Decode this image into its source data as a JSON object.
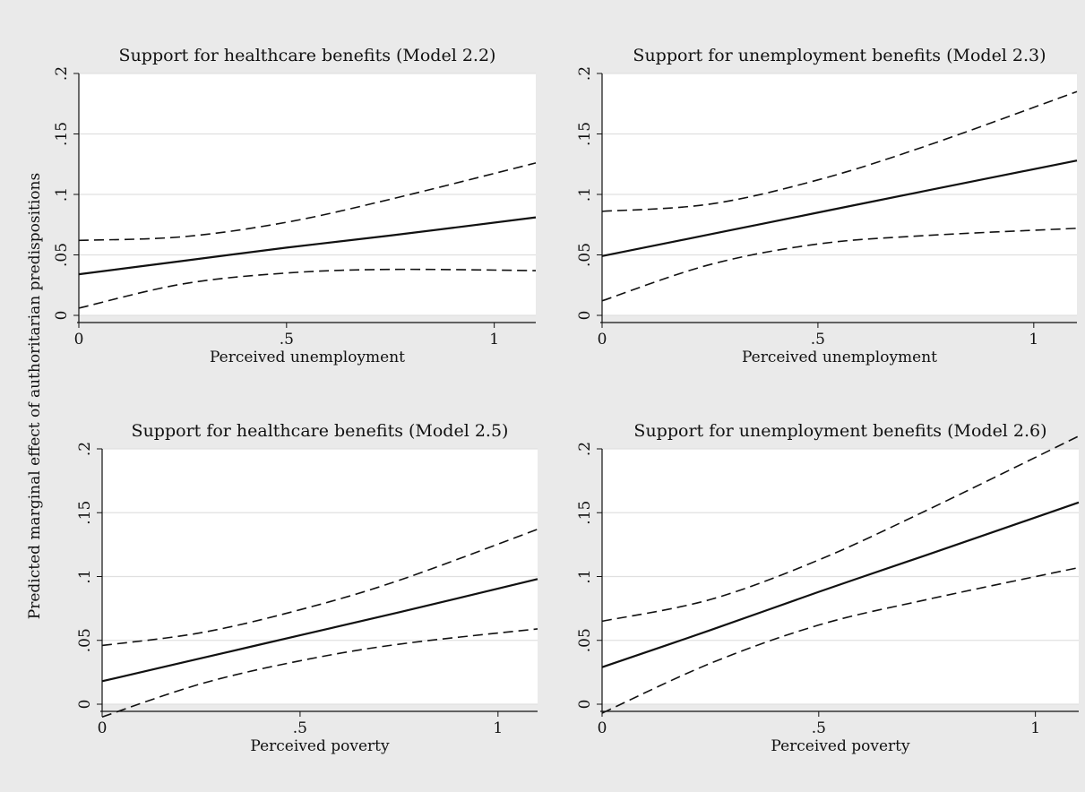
{
  "figure": {
    "ylabel": "Predicted marginal effect of authoritarian predispositions",
    "background": "#eaeaea",
    "plot_background": "#ffffff",
    "grid_color": "#e0e0e0",
    "line_color": "#111111"
  },
  "chart_data": [
    {
      "type": "line",
      "title": "Support for healthcare benefits (Model 2.2)",
      "xlabel": "Perceived unemployment",
      "ylabel": "",
      "xlim": [
        0,
        1.1
      ],
      "ylim": [
        0,
        0.2
      ],
      "xticks": [
        0,
        0.5,
        1
      ],
      "xtick_labels": [
        "0",
        ".5",
        "1"
      ],
      "yticks": [
        0,
        0.05,
        0.1,
        0.15,
        0.2
      ],
      "ytick_labels": [
        "0",
        ".05",
        ".1",
        ".15",
        ".2"
      ],
      "grid": true,
      "x": [
        0,
        0.25,
        0.5,
        0.75,
        1.1
      ],
      "series": [
        {
          "style": "solid",
          "values": [
            0.034,
            0.045,
            0.056,
            0.066,
            0.081
          ]
        },
        {
          "style": "dashed",
          "values": [
            0.062,
            0.065,
            0.077,
            0.096,
            0.126
          ]
        },
        {
          "style": "dashed",
          "values": [
            0.006,
            0.026,
            0.035,
            0.038,
            0.037
          ]
        }
      ]
    },
    {
      "type": "line",
      "title": "Support for unemployment benefits (Model 2.3)",
      "xlabel": "Perceived unemployment",
      "ylabel": "",
      "xlim": [
        0,
        1.1
      ],
      "ylim": [
        0,
        0.2
      ],
      "xticks": [
        0,
        0.5,
        1
      ],
      "xtick_labels": [
        "0",
        ".5",
        "1"
      ],
      "yticks": [
        0,
        0.05,
        0.1,
        0.15,
        0.2
      ],
      "ytick_labels": [
        "0",
        ".05",
        ".1",
        ".15",
        ".2"
      ],
      "grid": true,
      "x": [
        0,
        0.25,
        0.5,
        0.75,
        1.1
      ],
      "series": [
        {
          "style": "solid",
          "values": [
            0.049,
            0.067,
            0.085,
            0.103,
            0.128
          ]
        },
        {
          "style": "dashed",
          "values": [
            0.086,
            0.092,
            0.112,
            0.14,
            0.185
          ]
        },
        {
          "style": "dashed",
          "values": [
            0.012,
            0.042,
            0.059,
            0.066,
            0.072
          ]
        }
      ]
    },
    {
      "type": "line",
      "title": "Support for healthcare benefits (Model 2.5)",
      "xlabel": "Perceived poverty",
      "ylabel": "",
      "xlim": [
        0,
        1.1
      ],
      "ylim": [
        0,
        0.2
      ],
      "xticks": [
        0,
        0.5,
        1
      ],
      "xtick_labels": [
        "0",
        ".5",
        "1"
      ],
      "yticks": [
        0,
        0.05,
        0.1,
        0.15,
        0.2
      ],
      "ytick_labels": [
        "0",
        ".05",
        ".1",
        ".15",
        ".2"
      ],
      "grid": true,
      "x": [
        0,
        0.25,
        0.5,
        0.75,
        1.1
      ],
      "series": [
        {
          "style": "solid",
          "values": [
            0.018,
            0.036,
            0.054,
            0.072,
            0.098
          ]
        },
        {
          "style": "dashed",
          "values": [
            0.046,
            0.056,
            0.074,
            0.097,
            0.137
          ]
        },
        {
          "style": "dashed",
          "values": [
            -0.01,
            0.016,
            0.034,
            0.047,
            0.059
          ]
        }
      ]
    },
    {
      "type": "line",
      "title": "Support for unemployment benefits (Model 2.6)",
      "xlabel": "Perceived poverty",
      "ylabel": "",
      "xlim": [
        0,
        1.1
      ],
      "ylim": [
        0,
        0.2
      ],
      "xticks": [
        0,
        0.5,
        1
      ],
      "xtick_labels": [
        "0",
        ".5",
        "1"
      ],
      "yticks": [
        0,
        0.05,
        0.1,
        0.15,
        0.2
      ],
      "ytick_labels": [
        "0",
        ".05",
        ".1",
        ".15",
        ".2"
      ],
      "grid": true,
      "x": [
        0,
        0.25,
        0.5,
        0.75,
        1.1
      ],
      "series": [
        {
          "style": "solid",
          "values": [
            0.029,
            0.058,
            0.088,
            0.117,
            0.158
          ]
        },
        {
          "style": "dashed",
          "values": [
            0.065,
            0.082,
            0.113,
            0.152,
            0.21
          ]
        },
        {
          "style": "dashed",
          "values": [
            -0.007,
            0.032,
            0.062,
            0.082,
            0.107
          ]
        }
      ]
    }
  ]
}
